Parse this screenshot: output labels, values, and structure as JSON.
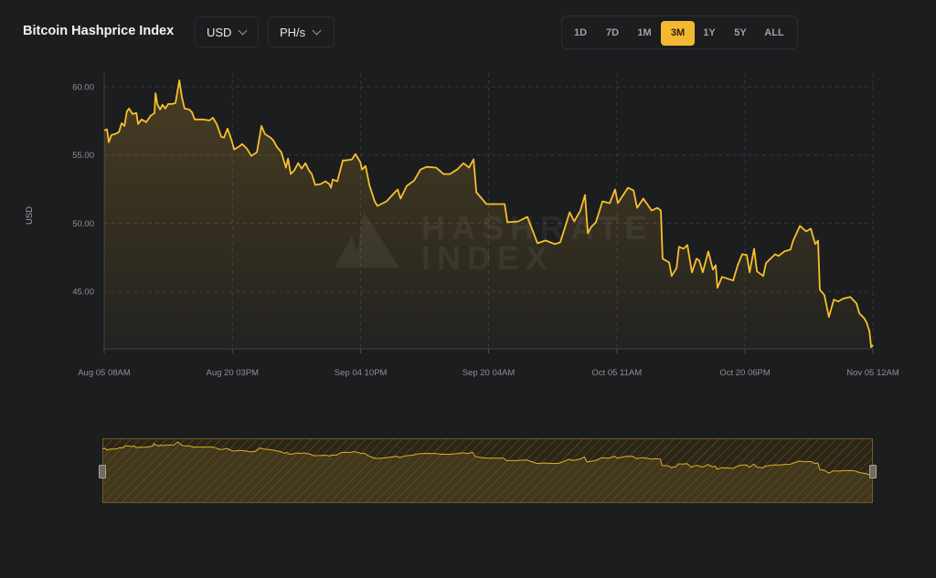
{
  "header": {
    "title": "Bitcoin Hashprice Index",
    "currency_select": {
      "value": "USD",
      "icon": "chevron-down-icon"
    },
    "unit_select": {
      "value": "PH/s",
      "icon": "chevron-down-icon"
    }
  },
  "range_buttons": [
    {
      "label": "1D",
      "active": false
    },
    {
      "label": "7D",
      "active": false
    },
    {
      "label": "1M",
      "active": false
    },
    {
      "label": "3M",
      "active": true
    },
    {
      "label": "1Y",
      "active": false
    },
    {
      "label": "5Y",
      "active": false
    },
    {
      "label": "ALL",
      "active": false
    }
  ],
  "watermark": {
    "line1": "HASHRATE",
    "line2": "INDEX"
  },
  "colors": {
    "accent": "#f3b731",
    "line": "#f7bf2e",
    "background": "#1c1d1f"
  },
  "chart_data": {
    "type": "area",
    "title": "",
    "xlabel": "",
    "ylabel": "USD",
    "ylim": [
      40.8,
      61.0
    ],
    "xlim": [
      "Aug 05 08:00",
      "Nov 05 00:00"
    ],
    "yticks": [
      45,
      50,
      55,
      60
    ],
    "ytick_labels": [
      "45.00",
      "50.00",
      "55.00",
      "60.00"
    ],
    "xticks": [
      "Aug 05 08:00",
      "Aug 20 15:00",
      "Sep 04 22:00",
      "Sep 20 04:00",
      "Oct 05 11:00",
      "Oct 20 18:00",
      "Nov 05 00:00"
    ],
    "xtick_labels": [
      "Aug 05 08AM",
      "Aug 20 03PM",
      "Sep 04 10PM",
      "Sep 20 04AM",
      "Oct 05 11AM",
      "Oct 20 06PM",
      "Nov 05 12AM"
    ],
    "grid": true,
    "navigator": true,
    "points": [
      [
        "Aug 05 08:00",
        56.8
      ],
      [
        "Aug 05 16:00",
        56.87
      ],
      [
        "Aug 05 21:00",
        55.93
      ],
      [
        "Aug 06 05:00",
        56.47
      ],
      [
        "Aug 06 15:00",
        56.53
      ],
      [
        "Aug 07 02:00",
        56.67
      ],
      [
        "Aug 07 10:00",
        57.33
      ],
      [
        "Aug 07 18:00",
        57.13
      ],
      [
        "Aug 08 01:00",
        58.2
      ],
      [
        "Aug 08 07:00",
        58.4
      ],
      [
        "Aug 08 17:00",
        58.0
      ],
      [
        "Aug 09 04:00",
        58.07
      ],
      [
        "Aug 09 09:00",
        57.27
      ],
      [
        "Aug 09 19:00",
        57.6
      ],
      [
        "Aug 10 08:00",
        57.4
      ],
      [
        "Aug 10 21:00",
        57.87
      ],
      [
        "Aug 11 08:00",
        58.07
      ],
      [
        "Aug 11 11:00",
        59.53
      ],
      [
        "Aug 11 16:00",
        58.73
      ],
      [
        "Aug 12 00:00",
        58.33
      ],
      [
        "Aug 12 07:00",
        58.67
      ],
      [
        "Aug 12 15:00",
        58.4
      ],
      [
        "Aug 12 23:00",
        58.73
      ],
      [
        "Aug 13 10:00",
        58.73
      ],
      [
        "Aug 13 20:00",
        58.8
      ],
      [
        "Aug 14 07:00",
        60.47
      ],
      [
        "Aug 14 14:00",
        59.27
      ],
      [
        "Aug 14 22:00",
        58.4
      ],
      [
        "Aug 15 11:00",
        58.33
      ],
      [
        "Aug 15 19:00",
        58.13
      ],
      [
        "Aug 16 03:00",
        57.6
      ],
      [
        "Aug 17 02:00",
        57.6
      ],
      [
        "Aug 17 21:00",
        57.53
      ],
      [
        "Aug 18 07:00",
        57.73
      ],
      [
        "Aug 18 18:00",
        57.27
      ],
      [
        "Aug 19 07:00",
        56.33
      ],
      [
        "Aug 19 15:00",
        56.27
      ],
      [
        "Aug 20 01:00",
        56.93
      ],
      [
        "Aug 20 12:00",
        56.13
      ],
      [
        "Aug 20 20:00",
        55.4
      ],
      [
        "Aug 21 09:00",
        55.6
      ],
      [
        "Aug 21 19:00",
        55.8
      ],
      [
        "Aug 22 08:00",
        55.47
      ],
      [
        "Aug 22 21:00",
        54.93
      ],
      [
        "Aug 23 13:00",
        55.2
      ],
      [
        "Aug 24 02:00",
        57.13
      ],
      [
        "Aug 24 12:00",
        56.53
      ],
      [
        "Aug 25 04:00",
        56.27
      ],
      [
        "Aug 25 12:00",
        56.07
      ],
      [
        "Aug 25 22:00",
        55.6
      ],
      [
        "Aug 26 11:00",
        55.2
      ],
      [
        "Aug 27 00:00",
        54.07
      ],
      [
        "Aug 27 06:00",
        54.73
      ],
      [
        "Aug 27 14:00",
        53.6
      ],
      [
        "Aug 28 00:00",
        53.87
      ],
      [
        "Aug 28 11:00",
        54.4
      ],
      [
        "Aug 28 21:00",
        54.0
      ],
      [
        "Aug 29 08:00",
        54.4
      ],
      [
        "Aug 29 18:00",
        53.87
      ],
      [
        "Aug 30 02:00",
        53.6
      ],
      [
        "Aug 30 12:00",
        52.8
      ],
      [
        "Aug 31 04:00",
        52.87
      ],
      [
        "Aug 31 17:00",
        53.07
      ],
      [
        "Sep 01 04:00",
        52.87
      ],
      [
        "Sep 01 09:00",
        52.6
      ],
      [
        "Sep 01 14:00",
        53.2
      ],
      [
        "Sep 02 03:00",
        53.07
      ],
      [
        "Sep 02 19:00",
        54.6
      ],
      [
        "Sep 03 03:00",
        54.6
      ],
      [
        "Sep 03 21:00",
        54.67
      ],
      [
        "Sep 04 07:00",
        55.07
      ],
      [
        "Sep 04 21:00",
        54.47
      ],
      [
        "Sep 05 02:00",
        53.93
      ],
      [
        "Sep 05 12:00",
        54.2
      ],
      [
        "Sep 05 23:00",
        52.8
      ],
      [
        "Sep 06 14:00",
        51.6
      ],
      [
        "Sep 06 22:00",
        51.27
      ],
      [
        "Sep 08 00:00",
        51.6
      ],
      [
        "Sep 09 00:00",
        52.27
      ],
      [
        "Sep 09 08:00",
        52.47
      ],
      [
        "Sep 09 16:00",
        51.8
      ],
      [
        "Sep 10 10:00",
        52.73
      ],
      [
        "Sep 11 07:00",
        53.13
      ],
      [
        "Sep 12 01:00",
        53.93
      ],
      [
        "Sep 12 19:00",
        54.13
      ],
      [
        "Sep 13 22:00",
        54.07
      ],
      [
        "Sep 14 19:00",
        53.6
      ],
      [
        "Sep 15 13:00",
        53.6
      ],
      [
        "Sep 16 10:00",
        53.93
      ],
      [
        "Sep 17 04:00",
        54.4
      ],
      [
        "Sep 17 20:00",
        54.07
      ],
      [
        "Sep 18 09:00",
        54.67
      ],
      [
        "Sep 18 17:00",
        52.27
      ],
      [
        "Sep 19 22:00",
        51.4
      ],
      [
        "Sep 22 02:00",
        51.4
      ],
      [
        "Sep 22 10:00",
        50.07
      ],
      [
        "Sep 23 17:00",
        50.13
      ],
      [
        "Sep 24 19:00",
        50.47
      ],
      [
        "Sep 25 08:00",
        49.6
      ],
      [
        "Sep 26 00:00",
        48.53
      ],
      [
        "Sep 26 23:00",
        48.73
      ],
      [
        "Sep 28 02:00",
        48.47
      ],
      [
        "Sep 28 17:00",
        48.6
      ],
      [
        "Sep 29 04:00",
        49.47
      ],
      [
        "Sep 29 20:00",
        50.8
      ],
      [
        "Sep 30 09:00",
        50.13
      ],
      [
        "Oct 01 03:00",
        50.93
      ],
      [
        "Oct 01 16:00",
        52.07
      ],
      [
        "Oct 02 00:00",
        49.27
      ],
      [
        "Oct 02 10:00",
        49.73
      ],
      [
        "Oct 02 23:00",
        50.07
      ],
      [
        "Oct 03 18:00",
        51.6
      ],
      [
        "Oct 04 15:00",
        51.47
      ],
      [
        "Oct 05 06:00",
        52.47
      ],
      [
        "Oct 05 14:00",
        51.47
      ],
      [
        "Oct 06 19:00",
        52.6
      ],
      [
        "Oct 07 11:00",
        52.4
      ],
      [
        "Oct 07 21:00",
        51.13
      ],
      [
        "Oct 08 15:00",
        51.8
      ],
      [
        "Oct 09 15:00",
        50.93
      ],
      [
        "Oct 10 07:00",
        51.13
      ],
      [
        "Oct 10 17:00",
        50.93
      ],
      [
        "Oct 10 22:00",
        47.4
      ],
      [
        "Oct 11 17:00",
        47.13
      ],
      [
        "Oct 12 00:00",
        46.13
      ],
      [
        "Oct 12 14:00",
        46.73
      ],
      [
        "Oct 12 21:00",
        48.27
      ],
      [
        "Oct 13 10:00",
        48.13
      ],
      [
        "Oct 13 21:00",
        48.4
      ],
      [
        "Oct 14 10:00",
        46.4
      ],
      [
        "Oct 14 23:00",
        47.4
      ],
      [
        "Oct 15 07:00",
        47.27
      ],
      [
        "Oct 15 17:00",
        46.4
      ],
      [
        "Oct 16 09:00",
        47.93
      ],
      [
        "Oct 16 22:00",
        46.6
      ],
      [
        "Oct 17 06:00",
        46.93
      ],
      [
        "Oct 17 11:00",
        45.27
      ],
      [
        "Oct 18 00:00",
        46.07
      ],
      [
        "Oct 19 08:00",
        45.8
      ],
      [
        "Oct 19 21:00",
        46.93
      ],
      [
        "Oct 20 10:00",
        47.73
      ],
      [
        "Oct 20 23:00",
        47.67
      ],
      [
        "Oct 21 07:00",
        46.4
      ],
      [
        "Oct 21 20:00",
        48.13
      ],
      [
        "Oct 22 04:00",
        46.47
      ],
      [
        "Oct 22 22:00",
        46.13
      ],
      [
        "Oct 23 06:00",
        47.07
      ],
      [
        "Oct 23 19:00",
        47.4
      ],
      [
        "Oct 24 08:00",
        47.73
      ],
      [
        "Oct 24 18:00",
        47.6
      ],
      [
        "Oct 25 10:00",
        47.93
      ],
      [
        "Oct 26 04:00",
        48.07
      ],
      [
        "Oct 26 12:00",
        48.73
      ],
      [
        "Oct 27 07:00",
        49.8
      ],
      [
        "Oct 28 01:00",
        49.4
      ],
      [
        "Oct 28 14:00",
        49.6
      ],
      [
        "Oct 29 03:00",
        48.47
      ],
      [
        "Oct 29 11:00",
        48.73
      ],
      [
        "Oct 29 16:00",
        45.13
      ],
      [
        "Oct 30 05:00",
        44.73
      ],
      [
        "Oct 30 18:00",
        43.13
      ],
      [
        "Oct 31 08:00",
        44.4
      ],
      [
        "Oct 31 21:00",
        44.27
      ],
      [
        "Nov 01 10:00",
        44.47
      ],
      [
        "Nov 02 07:00",
        44.6
      ],
      [
        "Nov 03 01:00",
        44.13
      ],
      [
        "Nov 03 09:00",
        43.4
      ],
      [
        "Nov 03 22:00",
        43.07
      ],
      [
        "Nov 04 06:00",
        42.73
      ],
      [
        "Nov 04 14:00",
        42.07
      ],
      [
        "Nov 04 19:00",
        40.93
      ],
      [
        "Nov 05 00:00",
        41.07
      ]
    ]
  }
}
